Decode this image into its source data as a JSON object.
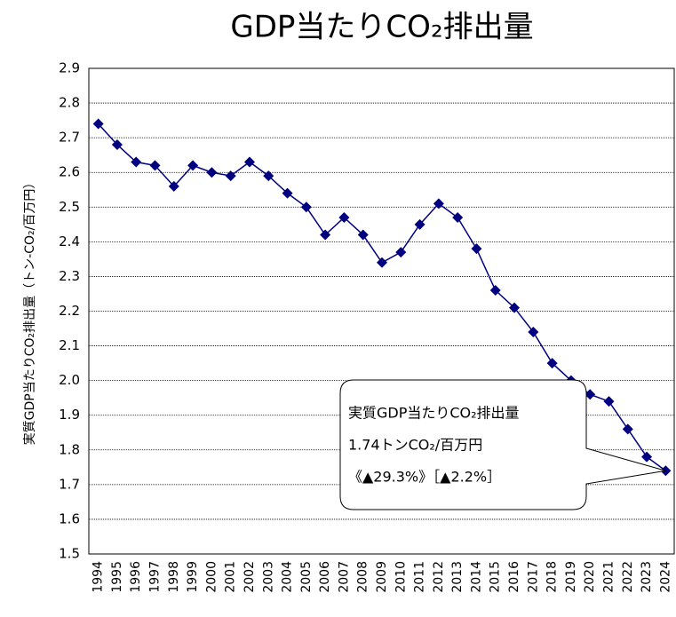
{
  "chart_data": {
    "type": "line",
    "title": "GDP当たりCO₂排出量",
    "y_label": "実質GDP当たりCO₂排出量（トン-CO₂/百万円）",
    "categories": [
      "1994",
      "1995",
      "1996",
      "1997",
      "1998",
      "1999",
      "2000",
      "2001",
      "2002",
      "2003",
      "2004",
      "2005",
      "2006",
      "2007",
      "2008",
      "2009",
      "2010",
      "2011",
      "2012",
      "2013",
      "2014",
      "2015",
      "2016",
      "2017",
      "2018",
      "2019",
      "2020",
      "2021",
      "2022",
      "2023",
      "2024"
    ],
    "values": [
      2.74,
      2.68,
      2.63,
      2.62,
      2.56,
      2.62,
      2.6,
      2.59,
      2.63,
      2.59,
      2.54,
      2.5,
      2.42,
      2.47,
      2.42,
      2.34,
      2.37,
      2.45,
      2.51,
      2.47,
      2.38,
      2.26,
      2.21,
      2.14,
      2.05,
      2.0,
      1.96,
      1.94,
      1.86,
      1.78,
      1.74
    ],
    "color": "#000080",
    "ylim": [
      1.5,
      2.9
    ],
    "yticks": [
      1.5,
      1.6,
      1.7,
      1.8,
      1.9,
      {
        "value": 2,
        "label": "2.0"
      },
      2.1,
      2.2,
      2.3,
      2.4,
      2.5,
      2.6,
      2.7,
      2.8,
      2.9
    ],
    "grid": true,
    "annotation": [
      "実質GDP当たりCO₂排出量",
      "1.74トンCO₂/百万円",
      "《▲29.3%》［▲2.2%］"
    ]
  }
}
